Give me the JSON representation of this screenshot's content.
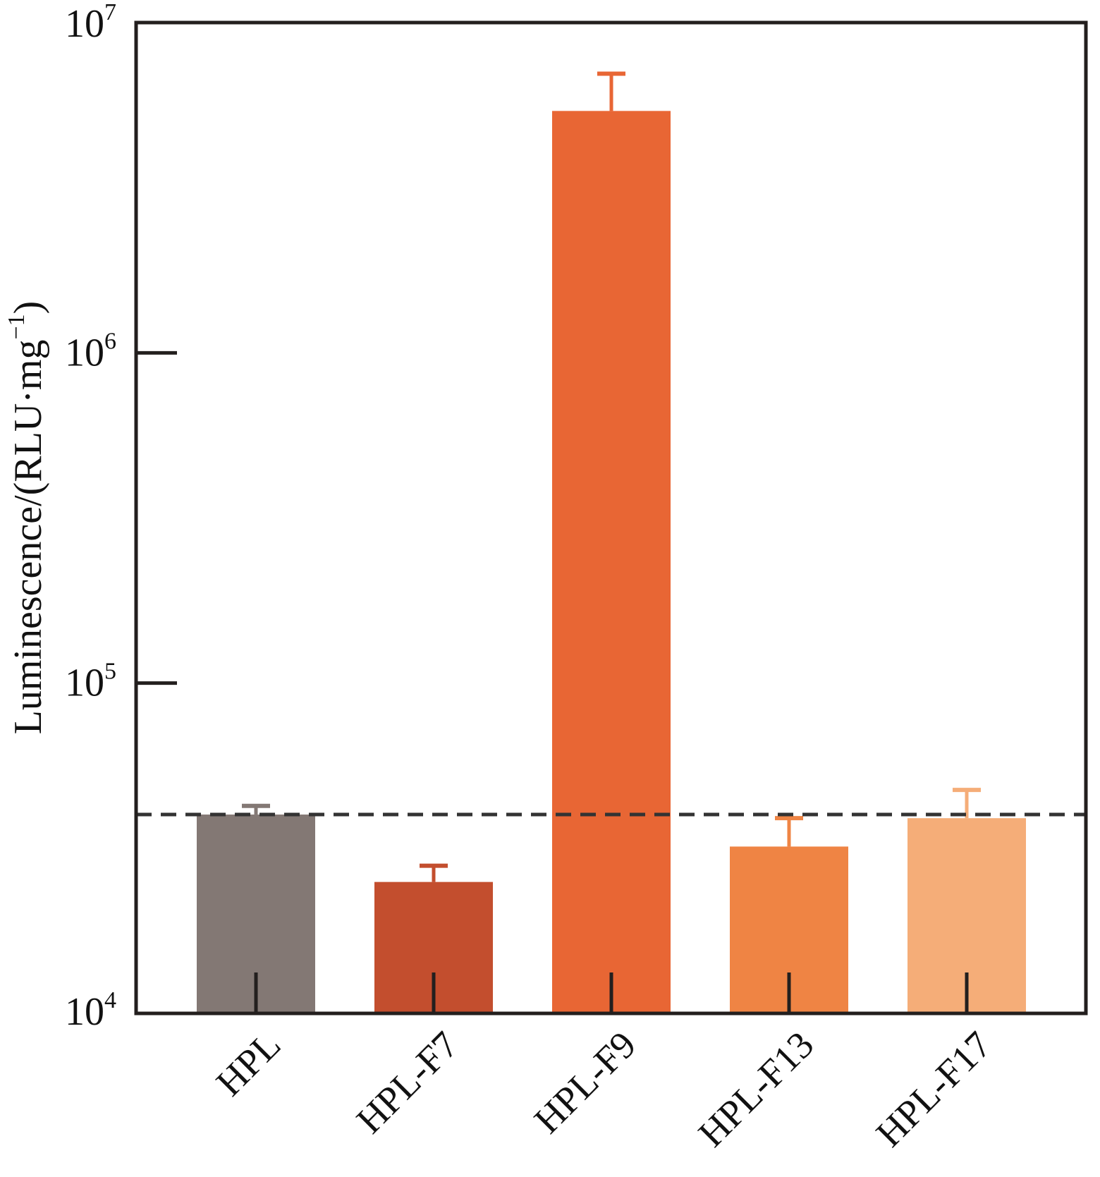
{
  "chart_data": {
    "type": "bar",
    "title": "",
    "xlabel": "",
    "ylabel": "Luminescence/(RLU·mg",
    "ylabel_superscript": "−1",
    "ylabel_close": ")",
    "yscale": "log",
    "ylim": [
      10000,
      10000000
    ],
    "yticks": [
      {
        "base": "10",
        "exp": "4",
        "value": 10000
      },
      {
        "base": "10",
        "exp": "5",
        "value": 100000
      },
      {
        "base": "10",
        "exp": "6",
        "value": 1000000
      },
      {
        "base": "10",
        "exp": "7",
        "value": 10000000
      }
    ],
    "categories": [
      "HPL",
      "HPL-F7",
      "HPL-F9",
      "HPL-F13",
      "HPL-F17"
    ],
    "values": [
      40000,
      25000,
      5400000,
      32000,
      39000
    ],
    "error_upper": [
      42500,
      28000,
      7000000,
      39000,
      47500
    ],
    "colors": [
      "#837874",
      "#c34e2e",
      "#e86634",
      "#ef8444",
      "#f5ad78"
    ],
    "reference_line": {
      "value": 40000,
      "style": "dashed",
      "color": "#333333"
    },
    "grid": false,
    "legend": "none"
  }
}
